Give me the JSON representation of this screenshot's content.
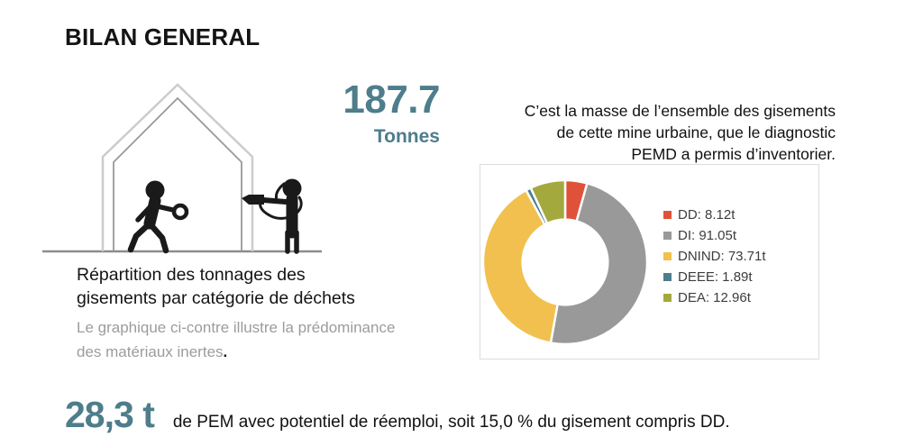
{
  "title": "BILAN GENERAL",
  "accent_color": "#4e7d8b",
  "hero": {
    "value": "187.7",
    "unit": "Tonnes",
    "illustration": "house-diagnostic-pictogram"
  },
  "intro": {
    "lines": [
      "C’est la masse de l’ensemble des gisements",
      "de cette mine urbaine, que le diagnostic",
      "PEMD a permis d’inventorier."
    ]
  },
  "caption": {
    "title_lines": [
      "Répartition des tonnages des",
      "gisements par catégorie de déchets"
    ],
    "subtitle_lines": [
      "Le graphique ci-contre illustre la prédominance",
      "des matériaux inertes"
    ],
    "subtitle_period": "."
  },
  "chart_data": {
    "type": "pie",
    "subtype": "donut",
    "title": "",
    "unit": "t",
    "total": 187.73,
    "categories": [
      "DD",
      "DI",
      "DNIND",
      "DEEE",
      "DEA"
    ],
    "values": [
      8.12,
      91.05,
      73.71,
      1.89,
      12.96
    ],
    "colors": [
      "#e0513a",
      "#999999",
      "#f1c04e",
      "#4e7d8b",
      "#a4a93e"
    ],
    "legend_position": "right",
    "start_angle_deg": 0,
    "direction": "clockwise",
    "inner_radius_ratio": 0.52,
    "slice_separator_color": "#ffffff"
  },
  "footer": {
    "value": "28,3 t",
    "text": "de PEM avec potentiel de réemploi, soit 15,0 % du gisement compris DD."
  }
}
